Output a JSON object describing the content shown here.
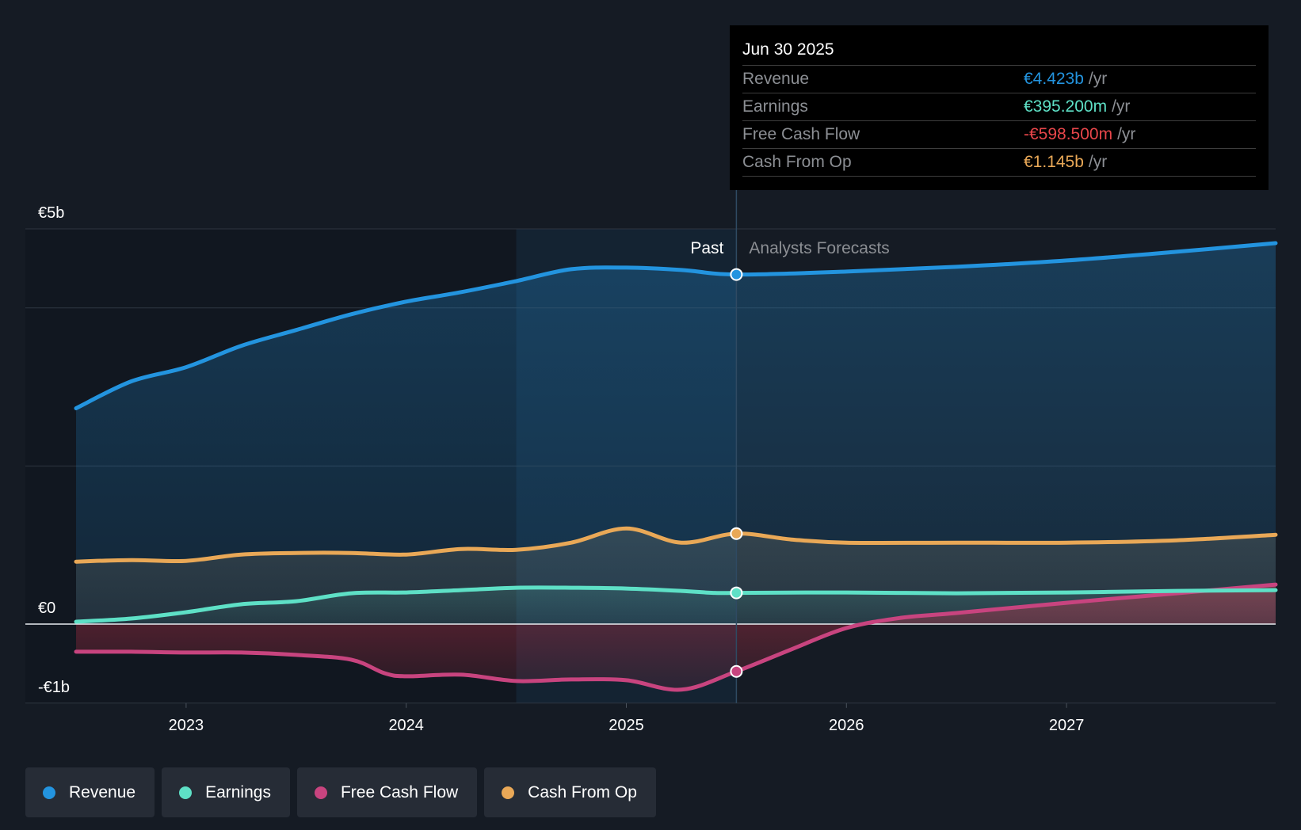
{
  "chart_data": {
    "type": "area",
    "currency_unit": "€ billions",
    "y_ticks": [
      {
        "value": 5,
        "label": "€5b"
      },
      {
        "value": 0,
        "label": "€0"
      },
      {
        "value": -1,
        "label": "-€1b"
      }
    ],
    "ylim": [
      -1,
      5
    ],
    "xlim": [
      2022.5,
      2027.95
    ],
    "x_ticks": [
      {
        "value": 2023,
        "label": "2023"
      },
      {
        "value": 2024,
        "label": "2024"
      },
      {
        "value": 2025,
        "label": "2025"
      },
      {
        "value": 2026,
        "label": "2026"
      },
      {
        "value": 2027,
        "label": "2027"
      }
    ],
    "past_label": "Past",
    "forecast_label": "Analysts Forecasts",
    "divider_x": 2025.5,
    "highlight_start_x": 2024.5,
    "series": [
      {
        "name": "Revenue",
        "key": "revenue",
        "color": "#2394df",
        "points": [
          [
            2022.5,
            2.73
          ],
          [
            2022.75,
            3.07
          ],
          [
            2023.0,
            3.25
          ],
          [
            2023.25,
            3.52
          ],
          [
            2023.5,
            3.72
          ],
          [
            2023.75,
            3.92
          ],
          [
            2024.0,
            4.08
          ],
          [
            2024.25,
            4.2
          ],
          [
            2024.5,
            4.34
          ],
          [
            2024.75,
            4.49
          ],
          [
            2025.0,
            4.51
          ],
          [
            2025.25,
            4.48
          ],
          [
            2025.5,
            4.423
          ],
          [
            2026.0,
            4.46
          ],
          [
            2026.5,
            4.52
          ],
          [
            2027.0,
            4.6
          ],
          [
            2027.5,
            4.71
          ],
          [
            2027.95,
            4.82
          ]
        ]
      },
      {
        "name": "Earnings",
        "key": "earnings",
        "color": "#5ee0c6",
        "points": [
          [
            2022.5,
            0.03
          ],
          [
            2022.75,
            0.07
          ],
          [
            2023.0,
            0.15
          ],
          [
            2023.25,
            0.25
          ],
          [
            2023.5,
            0.29
          ],
          [
            2023.75,
            0.39
          ],
          [
            2024.0,
            0.4
          ],
          [
            2024.25,
            0.43
          ],
          [
            2024.5,
            0.46
          ],
          [
            2024.75,
            0.46
          ],
          [
            2025.0,
            0.45
          ],
          [
            2025.25,
            0.42
          ],
          [
            2025.3952,
            0.395
          ],
          [
            2025.5,
            0.395
          ],
          [
            2026.0,
            0.4
          ],
          [
            2026.5,
            0.39
          ],
          [
            2027.0,
            0.4
          ],
          [
            2027.5,
            0.42
          ],
          [
            2027.95,
            0.43
          ]
        ]
      },
      {
        "name": "Free Cash Flow",
        "key": "fcf",
        "color": "#c8447f",
        "points": [
          [
            2022.5,
            -0.35
          ],
          [
            2022.75,
            -0.35
          ],
          [
            2023.0,
            -0.36
          ],
          [
            2023.25,
            -0.36
          ],
          [
            2023.5,
            -0.39
          ],
          [
            2023.75,
            -0.45
          ],
          [
            2023.9,
            -0.62
          ],
          [
            2024.0,
            -0.66
          ],
          [
            2024.25,
            -0.64
          ],
          [
            2024.5,
            -0.72
          ],
          [
            2024.75,
            -0.7
          ],
          [
            2025.0,
            -0.71
          ],
          [
            2025.25,
            -0.83
          ],
          [
            2025.5,
            -0.5985
          ],
          [
            2025.75,
            -0.32
          ],
          [
            2026.0,
            -0.05
          ],
          [
            2026.25,
            0.08
          ],
          [
            2026.5,
            0.14
          ],
          [
            2027.0,
            0.27
          ],
          [
            2027.5,
            0.39
          ],
          [
            2027.95,
            0.5
          ]
        ]
      },
      {
        "name": "Cash From Op",
        "key": "cfo",
        "color": "#e9a857",
        "points": [
          [
            2022.5,
            0.79
          ],
          [
            2022.75,
            0.81
          ],
          [
            2023.0,
            0.8
          ],
          [
            2023.25,
            0.88
          ],
          [
            2023.5,
            0.9
          ],
          [
            2023.75,
            0.9
          ],
          [
            2024.0,
            0.88
          ],
          [
            2024.25,
            0.95
          ],
          [
            2024.5,
            0.94
          ],
          [
            2024.75,
            1.03
          ],
          [
            2025.0,
            1.21
          ],
          [
            2025.25,
            1.03
          ],
          [
            2025.5,
            1.145
          ],
          [
            2025.75,
            1.07
          ],
          [
            2026.0,
            1.03
          ],
          [
            2026.5,
            1.03
          ],
          [
            2027.0,
            1.03
          ],
          [
            2027.5,
            1.06
          ],
          [
            2027.95,
            1.13
          ]
        ]
      }
    ]
  },
  "tooltip": {
    "date": "Jun 30 2025",
    "rows": [
      {
        "label": "Revenue",
        "value": "€4.423b",
        "unit": "/yr",
        "color": "#2394df"
      },
      {
        "label": "Earnings",
        "value": "€395.200m",
        "unit": "/yr",
        "color": "#5ee0c6"
      },
      {
        "label": "Free Cash Flow",
        "value": "-€598.500m",
        "unit": "/yr",
        "color": "#e8464a"
      },
      {
        "label": "Cash From Op",
        "value": "€1.145b",
        "unit": "/yr",
        "color": "#e9a857"
      }
    ]
  },
  "legend": [
    {
      "label": "Revenue",
      "color": "#2394df"
    },
    {
      "label": "Earnings",
      "color": "#5ee0c6"
    },
    {
      "label": "Free Cash Flow",
      "color": "#c8447f"
    },
    {
      "label": "Cash From Op",
      "color": "#e9a857"
    }
  ]
}
